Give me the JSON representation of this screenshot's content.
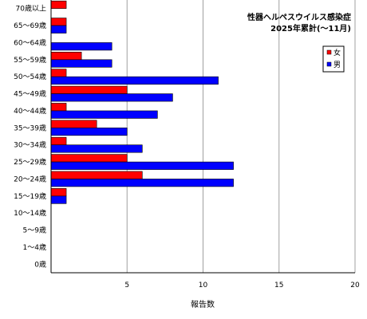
{
  "chart_data": {
    "type": "bar",
    "orientation": "horizontal",
    "title": [
      "性器ヘルペスウイルス感染症",
      "2025年累計(～11月)"
    ],
    "xlabel": "報告数",
    "ylabel": "",
    "xlim": [
      0,
      20
    ],
    "xticks": [
      "5",
      "10",
      "15",
      "20"
    ],
    "grid": true,
    "legend_position": "top-right",
    "categories": [
      "70歳以上",
      "65～69歳",
      "60～64歳",
      "55～59歳",
      "50～54歳",
      "45～49歳",
      "40～44歳",
      "35～39歳",
      "30～34歳",
      "25～29歳",
      "20～24歳",
      "15～19歳",
      "10～14歳",
      "5～9歳",
      "1～4歳",
      "0歳"
    ],
    "series": [
      {
        "name": "女",
        "color": "#ff0000",
        "values": [
          1,
          1,
          0,
          2,
          1,
          5,
          1,
          3,
          1,
          5,
          6,
          1,
          0,
          0,
          0,
          0
        ]
      },
      {
        "name": "男",
        "color": "#0000ff",
        "values": [
          0,
          1,
          4,
          4,
          11,
          8,
          7,
          5,
          6,
          12,
          12,
          1,
          0,
          0,
          0,
          0
        ]
      }
    ]
  }
}
